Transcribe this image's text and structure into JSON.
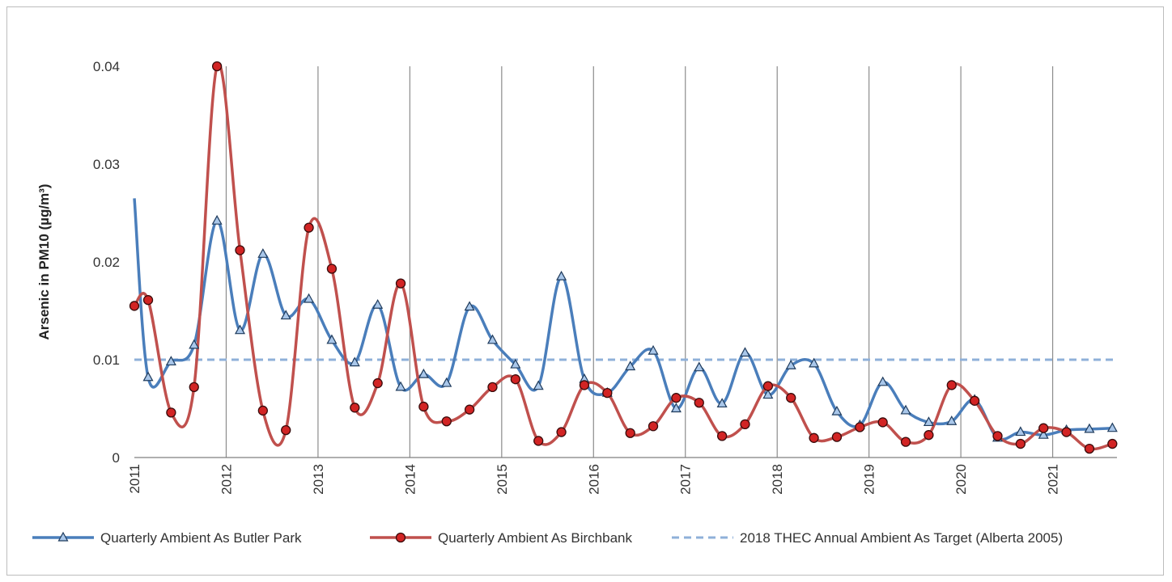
{
  "chart_data": {
    "type": "line",
    "ylabel": "Arsenic in PM10 (µg/m³)",
    "xlabel": "",
    "ylim": [
      0,
      0.04
    ],
    "yticks": [
      "0",
      "0.01",
      "0.02",
      "0.03",
      "0.04"
    ],
    "xlim": [
      2011,
      2021.7
    ],
    "xticks": [
      "2011",
      "2012",
      "2013",
      "2014",
      "2015",
      "2016",
      "2017",
      "2018",
      "2019",
      "2020",
      "2021"
    ],
    "grid": "vertical lines at each year",
    "legend_position": "bottom",
    "colors": {
      "butler": "#4a7ebb",
      "birchbank": "#c0504d",
      "target": "#8fb0d9"
    },
    "series": [
      {
        "name": "Quarterly Ambient As Butler Park",
        "marker": "triangle",
        "x": [
          2011.0,
          2011.15,
          2011.4,
          2011.65,
          2011.9,
          2012.15,
          2012.4,
          2012.65,
          2012.9,
          2013.15,
          2013.4,
          2013.65,
          2013.9,
          2014.15,
          2014.4,
          2014.65,
          2014.9,
          2015.15,
          2015.4,
          2015.65,
          2015.9,
          2016.15,
          2016.4,
          2016.65,
          2016.9,
          2017.15,
          2017.4,
          2017.65,
          2017.9,
          2018.15,
          2018.4,
          2018.65,
          2018.9,
          2019.15,
          2019.4,
          2019.65,
          2019.9,
          2020.15,
          2020.4,
          2020.65,
          2020.9,
          2021.15,
          2021.4,
          2021.65
        ],
        "values": [
          0.0265,
          0.0082,
          0.0098,
          0.0115,
          0.0242,
          0.013,
          0.0208,
          0.0145,
          0.0162,
          0.012,
          0.0097,
          0.0156,
          0.0072,
          0.0085,
          0.0076,
          0.0154,
          0.012,
          0.0095,
          0.0073,
          0.0185,
          0.008,
          0.0066,
          0.0093,
          0.0109,
          0.005,
          0.0092,
          0.0055,
          0.0107,
          0.0064,
          0.0094,
          0.0096,
          0.0047,
          0.0033,
          0.0077,
          0.0048,
          0.0036,
          0.0037,
          0.0059,
          0.002,
          0.0026,
          0.0023,
          0.0028,
          0.0029,
          0.003
        ]
      },
      {
        "name": "Quarterly Ambient As Birchbank",
        "marker": "circle",
        "x": [
          2011.0,
          2011.15,
          2011.4,
          2011.65,
          2011.9,
          2012.15,
          2012.4,
          2012.65,
          2012.9,
          2013.15,
          2013.4,
          2013.65,
          2013.9,
          2014.15,
          2014.4,
          2014.65,
          2014.9,
          2015.15,
          2015.4,
          2015.65,
          2015.9,
          2016.15,
          2016.4,
          2016.65,
          2016.9,
          2017.15,
          2017.4,
          2017.65,
          2017.9,
          2018.15,
          2018.4,
          2018.65,
          2018.9,
          2019.15,
          2019.4,
          2019.65,
          2019.9,
          2020.15,
          2020.4,
          2020.65,
          2020.9,
          2021.15,
          2021.4,
          2021.65
        ],
        "values": [
          0.0155,
          0.0161,
          0.0046,
          0.0072,
          0.04,
          0.0212,
          0.0048,
          0.0028,
          0.0235,
          0.0193,
          0.0051,
          0.0076,
          0.0178,
          0.0052,
          0.0037,
          0.0049,
          0.0072,
          0.008,
          0.0017,
          0.0026,
          0.0074,
          0.0066,
          0.0025,
          0.0032,
          0.0061,
          0.0056,
          0.0022,
          0.0034,
          0.0073,
          0.0061,
          0.002,
          0.0021,
          0.0031,
          0.0036,
          0.0016,
          0.0023,
          0.0074,
          0.0058,
          0.0022,
          0.0014,
          0.003,
          0.0026,
          0.0009,
          0.0014
        ]
      },
      {
        "name": "2018 THEC Annual Ambient As Target (Alberta 2005)",
        "style": "dashed",
        "constant": 0.01
      }
    ]
  }
}
